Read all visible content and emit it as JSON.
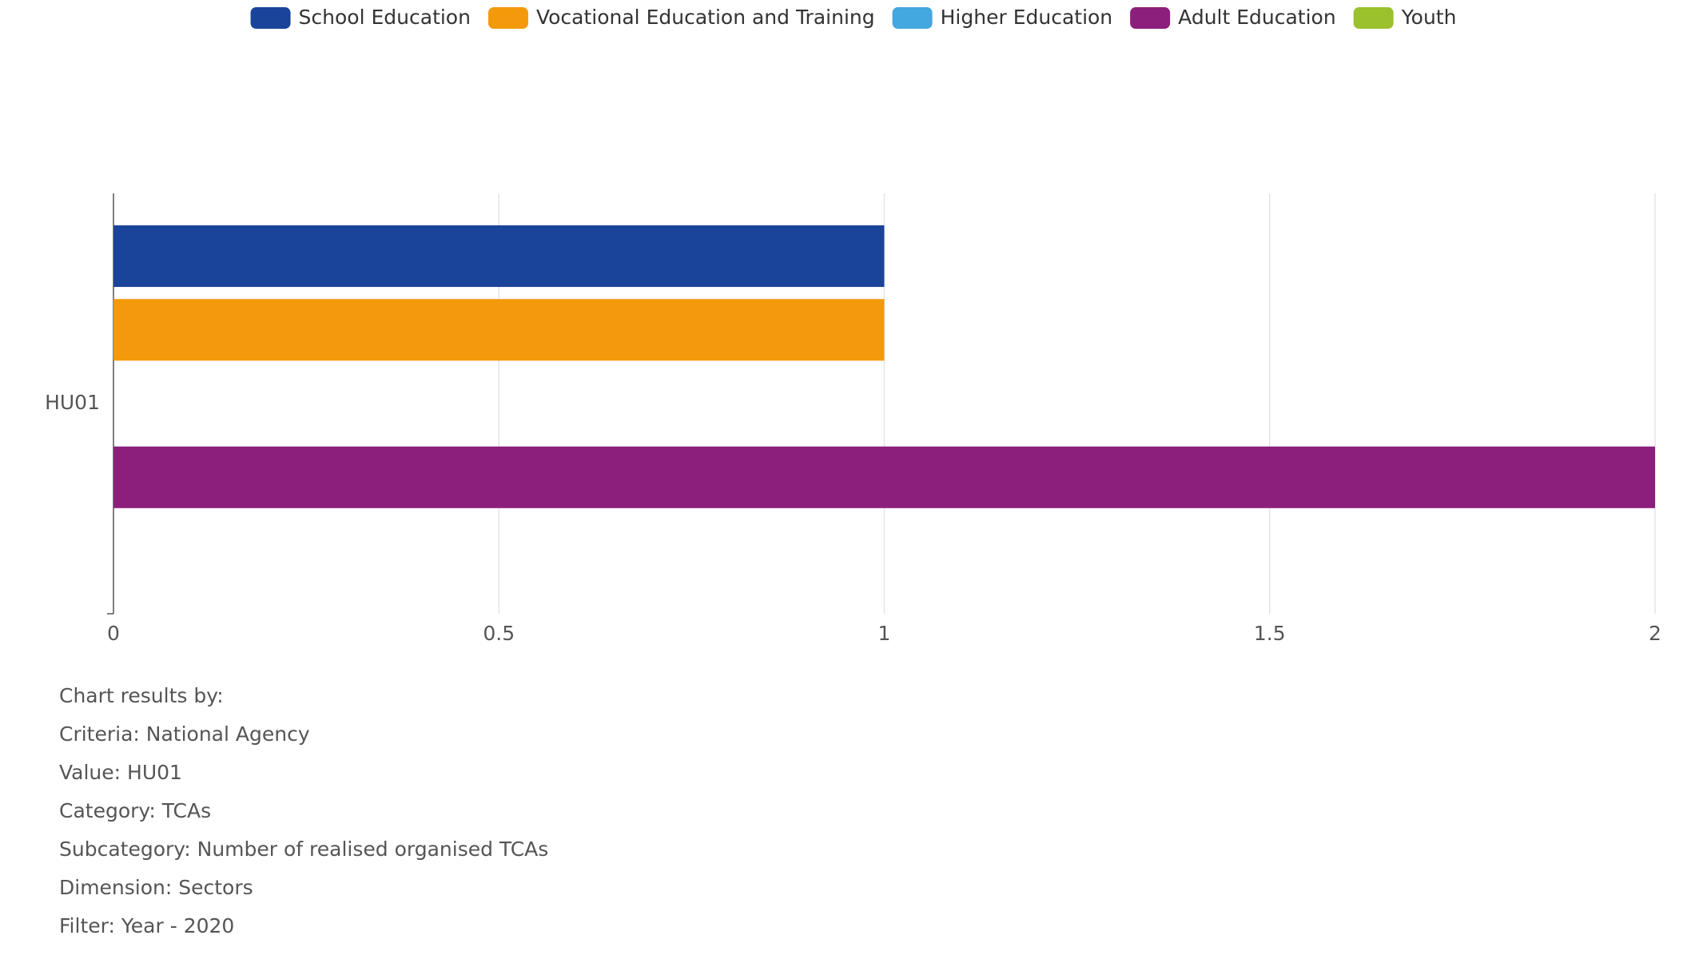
{
  "chart_data": {
    "type": "hbar",
    "categories": [
      "HU01"
    ],
    "series": [
      {
        "name": "School Education",
        "color": "#1a4499",
        "values": [
          1
        ]
      },
      {
        "name": "Vocational Education and Training",
        "color": "#f3990b",
        "values": [
          1
        ]
      },
      {
        "name": "Higher Education",
        "color": "#43a7e0",
        "values": [
          0
        ]
      },
      {
        "name": "Adult Education",
        "color": "#8c1f7c",
        "values": [
          2
        ]
      },
      {
        "name": "Youth",
        "color": "#9bc12d",
        "values": [
          0
        ]
      }
    ],
    "xlim": [
      0,
      2
    ],
    "xticks": [
      0,
      0.5,
      1,
      1.5,
      2
    ],
    "grid": true,
    "legend": "top"
  },
  "notes": [
    "Chart results by:",
    "Criteria: National Agency",
    "Value: HU01",
    "Category: TCAs",
    "Subcategory: Number of realised organised TCAs",
    "Dimension: Sectors",
    "Filter: Year - 2020"
  ]
}
